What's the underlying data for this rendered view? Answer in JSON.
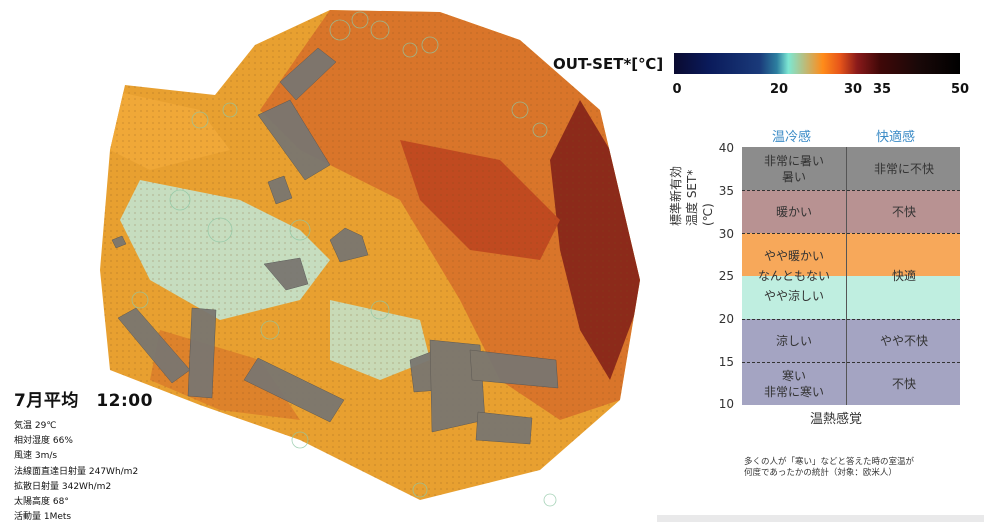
{
  "condition": {
    "title": "7月平均　12:00",
    "lines": [
      "気温  29℃",
      "相対湿度  66%",
      "風速  3m/s",
      "法線面直達日射量  247Wh/m2",
      "拡散日射量  342Wh/m2",
      "太陽高度  68°",
      "活動量  1Mets"
    ]
  },
  "colorbar": {
    "title": "OUT-SET*[℃]",
    "ticks": [
      "0",
      "20",
      "30",
      "35",
      "50"
    ]
  },
  "comfort_scale": {
    "headers": [
      "温冷感",
      "快適感"
    ],
    "y_ticks": [
      "40",
      "35",
      "30",
      "25",
      "20",
      "15",
      "10"
    ],
    "y_label": "標準新有効温度 SET*(℃)",
    "x_label": "温熱感覚",
    "bands": [
      {
        "sensation": "非常に暑い\n暑い",
        "comfort": "非常に不快",
        "color": "#8c8c8c"
      },
      {
        "sensation": "暖かい",
        "comfort": "不快",
        "color": "#b89292"
      },
      {
        "sensation": "やや暖かい\nなんともない\nやや涼しい",
        "comfort": "快適",
        "color_top": "#f7a85a",
        "color_bottom": "#bfeee0"
      },
      {
        "sensation": "涼しい",
        "comfort": "やや不快",
        "color": "#a4a4c2"
      },
      {
        "sensation": "寒い\n非常に寒い",
        "comfort": "不快",
        "color": "#a4a4c2"
      }
    ]
  },
  "note": "多くの人が「寒い」などと答えた時の室温が\n何度であったかの統計（対象：欧米人）"
}
